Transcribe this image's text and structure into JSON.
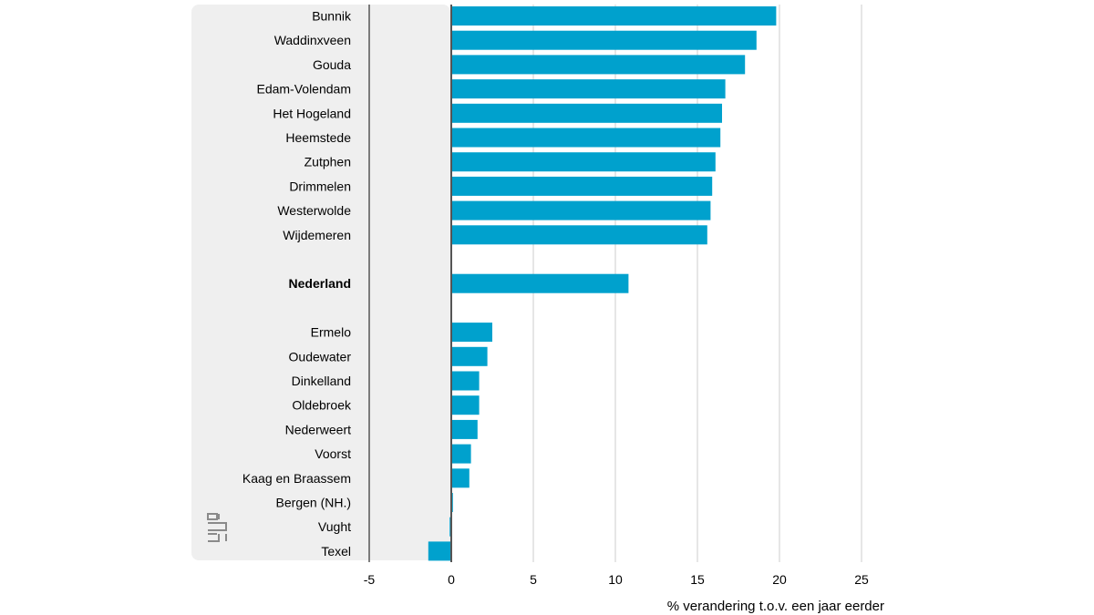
{
  "chart_data": {
    "type": "bar",
    "orientation": "horizontal",
    "categories": [
      "Bunnik",
      "Waddinxveen",
      "Gouda",
      "Edam-Volendam",
      "Het Hogeland",
      "Heemstede",
      "Zutphen",
      "Drimmelen",
      "Westerwolde",
      "Wijdemeren",
      "",
      "Nederland",
      "",
      "Ermelo",
      "Oudewater",
      "Dinkelland",
      "Oldebroek",
      "Nederweert",
      "Voorst",
      "Kaag en Braassem",
      "Bergen (NH.)",
      "Vught",
      "Texel"
    ],
    "values": [
      19.8,
      18.6,
      17.9,
      16.7,
      16.5,
      16.4,
      16.1,
      15.9,
      15.8,
      15.6,
      null,
      10.8,
      null,
      2.5,
      2.2,
      1.7,
      1.7,
      1.6,
      1.2,
      1.1,
      0.1,
      -0.1,
      -1.4
    ],
    "highlight": "Nederland",
    "xlabel": "% verandering t.o.v. een jaar eerder",
    "xlim": [
      -5,
      25
    ],
    "xticks": [
      -5,
      0,
      5,
      10,
      15,
      20,
      25
    ],
    "grid": true,
    "bar_color": "#00a1cd",
    "label_panel_color": "#efefef",
    "logo_icon": "cbs-logo-icon"
  }
}
